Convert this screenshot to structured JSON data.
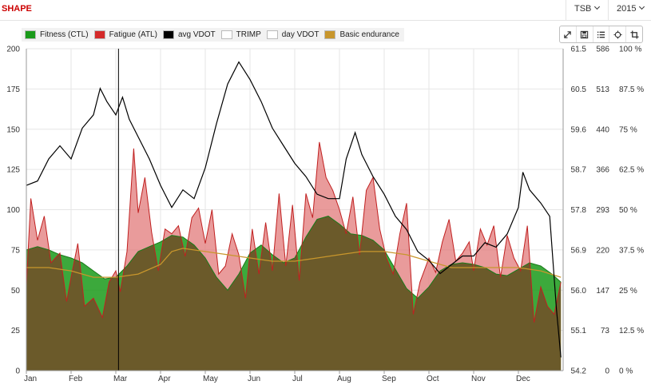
{
  "header": {
    "title": "SHAPE",
    "metric_select": "TSB",
    "year_select": "2015"
  },
  "legend": {
    "items": [
      {
        "label": "Fitness (CTL)",
        "color": "#1a9a1a"
      },
      {
        "label": "Fatigue (ATL)",
        "color": "#d42a2a"
      },
      {
        "label": "avg VDOT",
        "color": "#000000"
      },
      {
        "label": "TRIMP",
        "color": "#ffffff"
      },
      {
        "label": "day VDOT",
        "color": "#ffffff"
      },
      {
        "label": "Basic endurance",
        "color": "#c8962c"
      }
    ]
  },
  "toolbar": {
    "icons": [
      "fullscreen-icon",
      "save-icon",
      "list-icon",
      "move-icon",
      "crop-icon"
    ]
  },
  "chart_data": {
    "type": "area",
    "x_label_months": [
      "Jan",
      "Feb",
      "Mar",
      "Apr",
      "May",
      "Jun",
      "Jul",
      "Aug",
      "Sep",
      "Oct",
      "Nov",
      "Dec"
    ],
    "axes": {
      "left": {
        "range": [
          0,
          200
        ],
        "ticks": [
          "0",
          "25",
          "50",
          "75",
          "100",
          "125",
          "150",
          "175",
          "200"
        ]
      },
      "vdot": {
        "range": [
          54.2,
          61.5
        ],
        "ticks": [
          "54.2",
          "55.1",
          "56.0",
          "56.9",
          "57.8",
          "58.7",
          "59.6",
          "60.5",
          "61.5"
        ]
      },
      "trimp": {
        "range": [
          0,
          586
        ],
        "ticks": [
          "0",
          "73",
          "147",
          "220",
          "293",
          "366",
          "440",
          "513",
          "586"
        ]
      },
      "percent": {
        "range": [
          0,
          100
        ],
        "ticks": [
          "0 %",
          "12.5 %",
          "25 %",
          "37.5 %",
          "50 %",
          "62.5 %",
          "75 %",
          "87.5 %",
          "100 %"
        ]
      }
    },
    "grid": true,
    "marker_month": 2.06,
    "series": [
      {
        "name": "Fitness (CTL)",
        "axis": "left",
        "month_points": [
          [
            0,
            75
          ],
          [
            0.25,
            77
          ],
          [
            0.5,
            75
          ],
          [
            0.75,
            72
          ],
          [
            1,
            70
          ],
          [
            1.25,
            67
          ],
          [
            1.5,
            62
          ],
          [
            1.75,
            57
          ],
          [
            2,
            58
          ],
          [
            2.25,
            65
          ],
          [
            2.5,
            74
          ],
          [
            2.75,
            77
          ],
          [
            3,
            80
          ],
          [
            3.25,
            84
          ],
          [
            3.5,
            83
          ],
          [
            3.75,
            78
          ],
          [
            4,
            70
          ],
          [
            4.25,
            58
          ],
          [
            4.5,
            50
          ],
          [
            4.75,
            60
          ],
          [
            5,
            73
          ],
          [
            5.25,
            78
          ],
          [
            5.5,
            72
          ],
          [
            5.75,
            67
          ],
          [
            6,
            70
          ],
          [
            6.25,
            83
          ],
          [
            6.5,
            94
          ],
          [
            6.75,
            96
          ],
          [
            7,
            91
          ],
          [
            7.25,
            85
          ],
          [
            7.5,
            84
          ],
          [
            7.75,
            81
          ],
          [
            8,
            75
          ],
          [
            8.25,
            63
          ],
          [
            8.5,
            51
          ],
          [
            8.75,
            45
          ],
          [
            9,
            52
          ],
          [
            9.25,
            62
          ],
          [
            9.5,
            66
          ],
          [
            9.75,
            67
          ],
          [
            10,
            66
          ],
          [
            10.25,
            64
          ],
          [
            10.5,
            60
          ],
          [
            10.75,
            59
          ],
          [
            11,
            63
          ],
          [
            11.25,
            67
          ],
          [
            11.5,
            65
          ],
          [
            11.75,
            60
          ],
          [
            11.95,
            55
          ]
        ]
      },
      {
        "name": "Fatigue (ATL)",
        "axis": "left",
        "month_points": [
          [
            0,
            53
          ],
          [
            0.1,
            107
          ],
          [
            0.25,
            81
          ],
          [
            0.4,
            96
          ],
          [
            0.55,
            67
          ],
          [
            0.75,
            73
          ],
          [
            0.9,
            43
          ],
          [
            1,
            58
          ],
          [
            1.15,
            79
          ],
          [
            1.3,
            40
          ],
          [
            1.5,
            45
          ],
          [
            1.7,
            33
          ],
          [
            1.85,
            55
          ],
          [
            2,
            62
          ],
          [
            2.1,
            49
          ],
          [
            2.25,
            74
          ],
          [
            2.4,
            138
          ],
          [
            2.5,
            98
          ],
          [
            2.65,
            120
          ],
          [
            2.8,
            86
          ],
          [
            2.95,
            62
          ],
          [
            3.1,
            88
          ],
          [
            3.25,
            85
          ],
          [
            3.4,
            90
          ],
          [
            3.55,
            71
          ],
          [
            3.7,
            95
          ],
          [
            3.85,
            101
          ],
          [
            4,
            79
          ],
          [
            4.15,
            100
          ],
          [
            4.3,
            60
          ],
          [
            4.45,
            65
          ],
          [
            4.6,
            85
          ],
          [
            4.75,
            72
          ],
          [
            4.9,
            45
          ],
          [
            5.05,
            88
          ],
          [
            5.2,
            60
          ],
          [
            5.35,
            92
          ],
          [
            5.5,
            62
          ],
          [
            5.65,
            110
          ],
          [
            5.8,
            65
          ],
          [
            5.95,
            103
          ],
          [
            6.1,
            56
          ],
          [
            6.25,
            110
          ],
          [
            6.4,
            95
          ],
          [
            6.55,
            142
          ],
          [
            6.7,
            120
          ],
          [
            6.85,
            112
          ],
          [
            7,
            100
          ],
          [
            7.15,
            85
          ],
          [
            7.3,
            108
          ],
          [
            7.45,
            72
          ],
          [
            7.6,
            112
          ],
          [
            7.75,
            120
          ],
          [
            7.9,
            88
          ],
          [
            8.05,
            70
          ],
          [
            8.2,
            60
          ],
          [
            8.35,
            85
          ],
          [
            8.5,
            104
          ],
          [
            8.65,
            35
          ],
          [
            8.8,
            55
          ],
          [
            9,
            70
          ],
          [
            9.15,
            61
          ],
          [
            9.3,
            80
          ],
          [
            9.45,
            94
          ],
          [
            9.6,
            68
          ],
          [
            9.75,
            73
          ],
          [
            9.9,
            80
          ],
          [
            10,
            62
          ],
          [
            10.15,
            88
          ],
          [
            10.3,
            78
          ],
          [
            10.45,
            90
          ],
          [
            10.6,
            58
          ],
          [
            10.75,
            84
          ],
          [
            10.9,
            70
          ],
          [
            11.05,
            62
          ],
          [
            11.2,
            90
          ],
          [
            11.35,
            30
          ],
          [
            11.5,
            52
          ],
          [
            11.65,
            40
          ],
          [
            11.8,
            35
          ],
          [
            11.95,
            55
          ]
        ]
      },
      {
        "name": "avg VDOT",
        "axis": "vdot",
        "month_points": [
          [
            0,
            58.4
          ],
          [
            0.25,
            58.5
          ],
          [
            0.5,
            59.0
          ],
          [
            0.75,
            59.3
          ],
          [
            1,
            59.0
          ],
          [
            1.25,
            59.7
          ],
          [
            1.5,
            60.0
          ],
          [
            1.65,
            60.6
          ],
          [
            1.8,
            60.3
          ],
          [
            2,
            60.0
          ],
          [
            2.15,
            60.4
          ],
          [
            2.3,
            59.9
          ],
          [
            2.5,
            59.5
          ],
          [
            2.75,
            59.0
          ],
          [
            3,
            58.4
          ],
          [
            3.25,
            57.9
          ],
          [
            3.5,
            58.3
          ],
          [
            3.75,
            58.1
          ],
          [
            4,
            58.8
          ],
          [
            4.25,
            59.8
          ],
          [
            4.5,
            60.7
          ],
          [
            4.75,
            61.2
          ],
          [
            5,
            60.8
          ],
          [
            5.25,
            60.3
          ],
          [
            5.5,
            59.7
          ],
          [
            5.75,
            59.3
          ],
          [
            6,
            58.9
          ],
          [
            6.25,
            58.6
          ],
          [
            6.5,
            58.2
          ],
          [
            6.75,
            58.1
          ],
          [
            7,
            58.1
          ],
          [
            7.15,
            59.0
          ],
          [
            7.35,
            59.6
          ],
          [
            7.5,
            59.1
          ],
          [
            7.75,
            58.6
          ],
          [
            8,
            58.2
          ],
          [
            8.25,
            57.7
          ],
          [
            8.5,
            57.4
          ],
          [
            8.75,
            56.9
          ],
          [
            9,
            56.7
          ],
          [
            9.25,
            56.4
          ],
          [
            9.5,
            56.6
          ],
          [
            9.75,
            56.8
          ],
          [
            10,
            56.8
          ],
          [
            10.25,
            57.1
          ],
          [
            10.5,
            57.0
          ],
          [
            10.75,
            57.3
          ],
          [
            11,
            57.9
          ],
          [
            11.1,
            58.7
          ],
          [
            11.25,
            58.3
          ],
          [
            11.5,
            58.0
          ],
          [
            11.7,
            57.7
          ],
          [
            11.85,
            55.6
          ],
          [
            11.95,
            54.5
          ]
        ]
      },
      {
        "name": "Basic endurance",
        "axis": "percent",
        "month_points": [
          [
            0,
            32
          ],
          [
            0.5,
            32
          ],
          [
            1,
            31
          ],
          [
            1.5,
            29
          ],
          [
            2,
            29
          ],
          [
            2.5,
            30
          ],
          [
            3,
            33
          ],
          [
            3.25,
            37
          ],
          [
            3.5,
            38
          ],
          [
            4,
            37
          ],
          [
            4.5,
            36
          ],
          [
            5,
            35
          ],
          [
            5.5,
            34
          ],
          [
            6,
            34
          ],
          [
            6.5,
            35
          ],
          [
            7,
            36
          ],
          [
            7.5,
            37
          ],
          [
            8,
            37
          ],
          [
            8.5,
            36
          ],
          [
            9,
            34
          ],
          [
            9.5,
            32
          ],
          [
            10,
            32
          ],
          [
            10.5,
            32
          ],
          [
            11,
            32
          ],
          [
            11.5,
            31
          ],
          [
            11.95,
            29
          ]
        ]
      }
    ]
  }
}
